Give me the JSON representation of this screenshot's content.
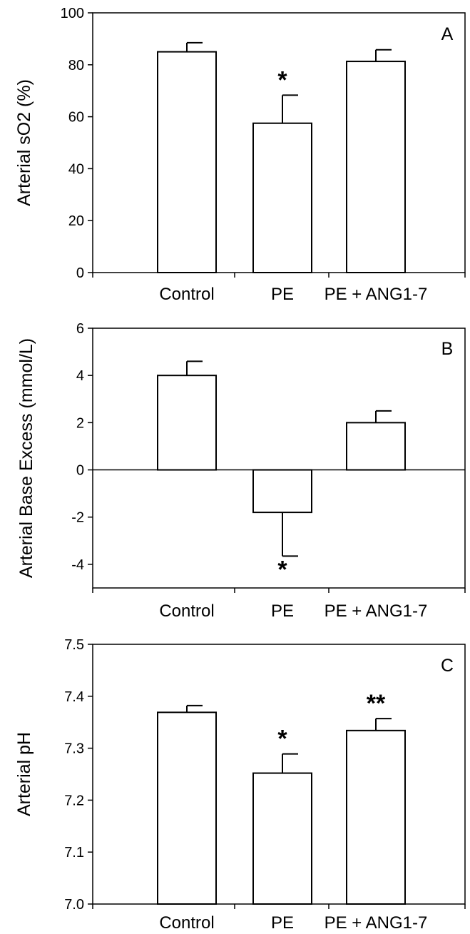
{
  "chart_data": [
    {
      "type": "bar",
      "panel_label": "A",
      "ylabel": "Arterial sO2 (%)",
      "categories": [
        "Control",
        "PE",
        "PE + ANG1-7"
      ],
      "values": [
        85,
        57.5,
        81.3
      ],
      "errors": [
        3.5,
        10.8,
        4.5
      ],
      "error_direction": [
        "up",
        "up",
        "up"
      ],
      "annotations": [
        "",
        "*",
        ""
      ],
      "ylim": [
        0,
        100
      ],
      "yticks": [
        0,
        20,
        40,
        60,
        80,
        100
      ],
      "ytick_labels": [
        "0",
        "20",
        "40",
        "60",
        "80",
        "100"
      ]
    },
    {
      "type": "bar",
      "panel_label": "B",
      "ylabel": "Arterial Base Excess (mmol/L)",
      "categories": [
        "Control",
        "PE",
        "PE + ANG1-7"
      ],
      "values": [
        4.0,
        -1.8,
        2.0
      ],
      "errors": [
        0.6,
        1.85,
        0.5
      ],
      "error_direction": [
        "up",
        "down",
        "up"
      ],
      "annotations": [
        "",
        "*",
        ""
      ],
      "ylim": [
        -5,
        6
      ],
      "yticks": [
        -4,
        -2,
        0,
        2,
        4,
        6
      ],
      "ytick_labels": [
        "-4",
        "-2",
        "0",
        "2",
        "4",
        "6"
      ],
      "zero_line": true
    },
    {
      "type": "bar",
      "panel_label": "C",
      "ylabel": "Arterial pH",
      "categories": [
        "Control",
        "PE",
        "PE + ANG1-7"
      ],
      "values": [
        7.369,
        7.252,
        7.334
      ],
      "errors": [
        0.013,
        0.037,
        0.023
      ],
      "error_direction": [
        "up",
        "up",
        "up"
      ],
      "annotations": [
        "",
        "*",
        "**"
      ],
      "ylim": [
        7.0,
        7.5
      ],
      "yticks": [
        7.0,
        7.1,
        7.2,
        7.3,
        7.4,
        7.5
      ],
      "ytick_labels": [
        "7.0",
        "7.1",
        "7.2",
        "7.3",
        "7.4",
        "7.5"
      ]
    }
  ]
}
